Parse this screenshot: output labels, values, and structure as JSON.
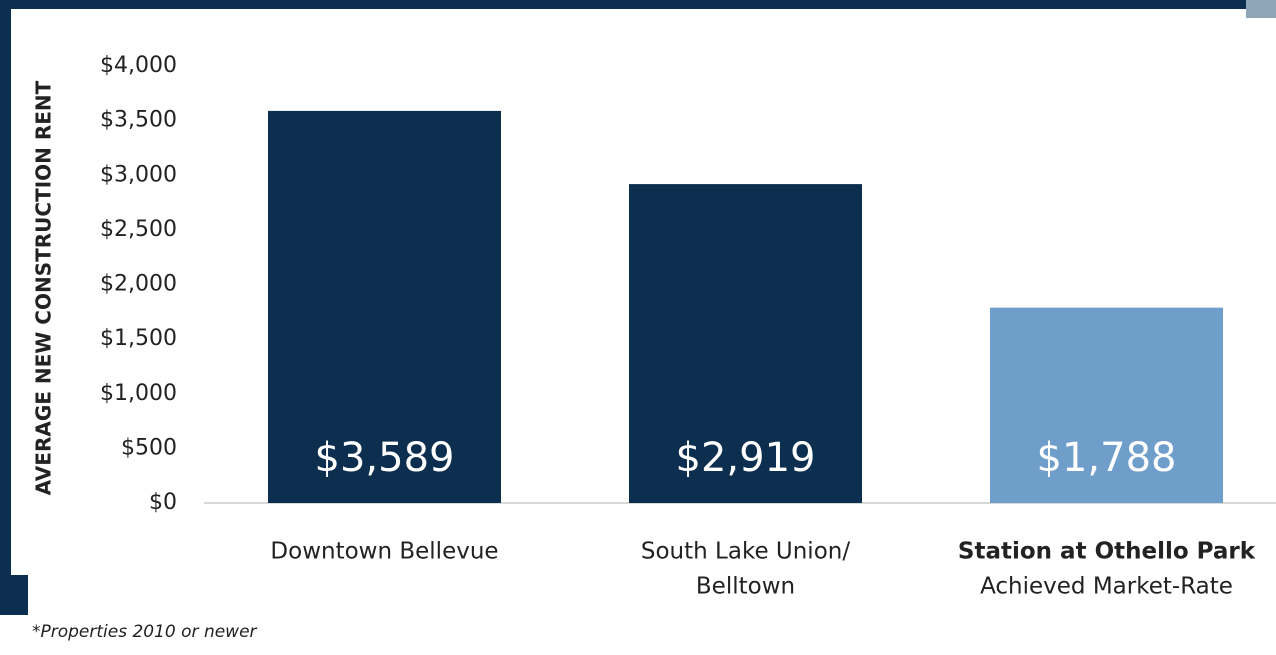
{
  "chart_data": {
    "type": "bar",
    "y_label": "AVERAGE NEW CONSTRUCTION RENT",
    "categories": [
      "Downtown Bellevue",
      [
        "South Lake Union/",
        "Belltown"
      ],
      [
        "Station at Othello Park",
        "Achieved Market-Rate"
      ]
    ],
    "values": [
      3589,
      2919,
      1788
    ],
    "value_labels": [
      "$3,589",
      "$2,919",
      "$1,788"
    ],
    "colors": [
      "#0d2f4f",
      "#0d2f4f",
      "#6f9ecb"
    ],
    "ylim": [
      0,
      4000
    ],
    "yticks": [
      {
        "value": 0,
        "label": "$0"
      },
      {
        "value": 500,
        "label": "$500"
      },
      {
        "value": 1000,
        "label": "$1,000"
      },
      {
        "value": 1500,
        "label": "$1,500"
      },
      {
        "value": 2000,
        "label": "$2,000"
      },
      {
        "value": 2500,
        "label": "$2,500"
      },
      {
        "value": 3000,
        "label": "$3,000"
      },
      {
        "value": 3500,
        "label": "$3,500"
      },
      {
        "value": 4000,
        "label": "$4,000"
      }
    ],
    "footnote": "*Properties 2010 or newer"
  }
}
